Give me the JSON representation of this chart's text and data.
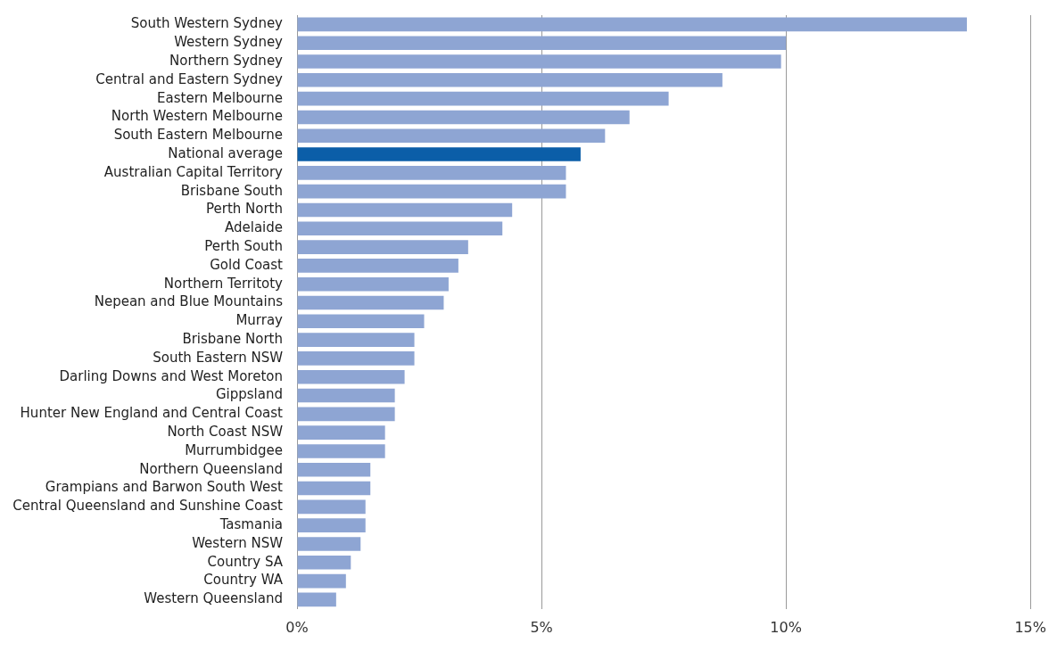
{
  "chart_data": {
    "type": "bar",
    "orientation": "horizontal",
    "categories": [
      "South Western Sydney",
      "Western Sydney",
      "Northern Sydney",
      "Central and Eastern Sydney",
      "Eastern Melbourne",
      "North Western Melbourne",
      "South Eastern Melbourne",
      "National average",
      "Australian Capital Territory",
      "Brisbane South",
      "Perth North",
      "Adelaide",
      "Perth South",
      "Gold Coast",
      "Northern Territoty",
      "Nepean and Blue Mountains",
      "Murray",
      "Brisbane North",
      "South Eastern NSW",
      "Darling Downs and West Moreton",
      "Gippsland",
      "Hunter New England and Central Coast",
      "North Coast NSW",
      "Murrumbidgee",
      "Northern Queensland",
      "Grampians and Barwon South West",
      "Central Queensland and Sunshine Coast",
      "Tasmania",
      "Western NSW",
      "Country SA",
      "Country WA",
      "Western Queensland"
    ],
    "values": [
      13.7,
      10.0,
      9.9,
      8.7,
      7.6,
      6.8,
      6.3,
      5.8,
      5.5,
      5.5,
      4.4,
      4.2,
      3.5,
      3.3,
      3.1,
      3.0,
      2.6,
      2.4,
      2.4,
      2.2,
      2.0,
      2.0,
      1.8,
      1.8,
      1.5,
      1.5,
      1.4,
      1.4,
      1.3,
      1.1,
      1.0,
      0.8
    ],
    "colors": [
      "#8ea5d3",
      "#8ea5d3",
      "#8ea5d3",
      "#8ea5d3",
      "#8ea5d3",
      "#8ea5d3",
      "#8ea5d3",
      "#0b5ea8",
      "#8ea5d3",
      "#8ea5d3",
      "#8ea5d3",
      "#8ea5d3",
      "#8ea5d3",
      "#8ea5d3",
      "#8ea5d3",
      "#8ea5d3",
      "#8ea5d3",
      "#8ea5d3",
      "#8ea5d3",
      "#8ea5d3",
      "#8ea5d3",
      "#8ea5d3",
      "#8ea5d3",
      "#8ea5d3",
      "#8ea5d3",
      "#8ea5d3",
      "#8ea5d3",
      "#8ea5d3",
      "#8ea5d3",
      "#8ea5d3",
      "#8ea5d3",
      "#8ea5d3"
    ],
    "xlim": [
      0,
      15
    ],
    "xticks": [
      {
        "value": 0,
        "label": "0%"
      },
      {
        "value": 5,
        "label": "5%"
      },
      {
        "value": 10,
        "label": "10%"
      },
      {
        "value": 15,
        "label": "15%"
      }
    ],
    "grid": "x",
    "legend": false
  }
}
